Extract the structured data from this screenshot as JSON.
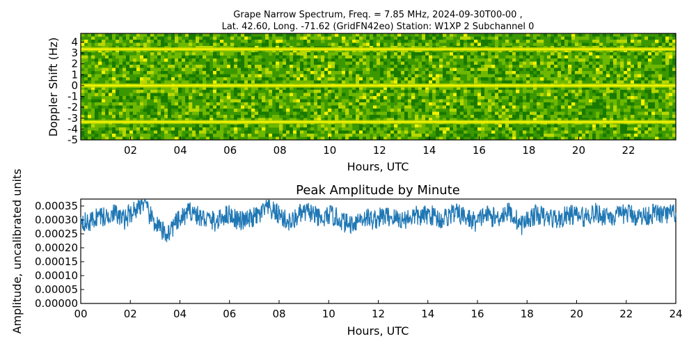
{
  "chart_data": [
    {
      "type": "heatmap",
      "title": "Grape Narrow Spectrum, Freq. = 7.85 MHz, 2024-09-30T00-00 ,",
      "subtitle": "Lat.  42.60, Long. -71.62 (GridFN42eo) Station: W1XP 2 Subchannel 0",
      "xlabel": "Hours, UTC",
      "ylabel": "Doppler Shift (Hz)",
      "x_tick_labels": [
        "02",
        "04",
        "06",
        "08",
        "10",
        "12",
        "14",
        "16",
        "18",
        "20",
        "22"
      ],
      "x_tick_values": [
        2,
        4,
        6,
        8,
        10,
        12,
        14,
        16,
        18,
        20,
        22
      ],
      "xlim": [
        0,
        23.9
      ],
      "y_tick_labels": [
        "4",
        "3",
        "2",
        "1",
        "0",
        "-1",
        "-2",
        "-3",
        "-4",
        "-5"
      ],
      "y_tick_values": [
        4,
        3,
        2,
        1,
        0,
        -1,
        -2,
        -3,
        -4,
        -5
      ],
      "ylim": [
        -5,
        4.8
      ],
      "bright_lines_hz": [
        3.35,
        0.0,
        -3.35
      ],
      "colormap": [
        "#1a7a00",
        "#3c9800",
        "#6fb800",
        "#b8d800",
        "#f2f200"
      ],
      "grid": false
    },
    {
      "type": "line",
      "title": "Peak Amplitude by Minute",
      "xlabel": "Hours, UTC",
      "ylabel": "Amplitude, uncalibrated units",
      "x_tick_labels": [
        "00",
        "02",
        "04",
        "06",
        "08",
        "10",
        "12",
        "14",
        "16",
        "18",
        "20",
        "22",
        "24"
      ],
      "x_tick_values": [
        0,
        2,
        4,
        6,
        8,
        10,
        12,
        14,
        16,
        18,
        20,
        22,
        24
      ],
      "xlim": [
        0,
        24
      ],
      "y_tick_labels": [
        "0.00000",
        "0.00005",
        "0.00010",
        "0.00015",
        "0.00020",
        "0.00025",
        "0.00030",
        "0.00035"
      ],
      "y_tick_values": [
        0,
        5e-05,
        0.0001,
        0.00015,
        0.0002,
        0.00025,
        0.0003,
        0.00035
      ],
      "ylim": [
        0,
        0.000375
      ],
      "line_color": "#1f77b4",
      "grid": false,
      "series": [
        {
          "x": [
            0,
            0.25,
            0.5,
            0.75,
            1,
            1.25,
            1.5,
            1.75,
            2,
            2.25,
            2.5,
            2.75,
            3,
            3.25,
            3.5,
            3.75,
            4,
            4.25,
            4.5,
            4.75,
            5,
            5.25,
            5.5,
            5.75,
            6,
            6.25,
            6.5,
            6.75,
            7,
            7.25,
            7.5,
            7.75,
            8,
            8.25,
            8.5,
            8.75,
            9,
            9.25,
            9.5,
            9.75,
            10,
            10.25,
            10.5,
            10.75,
            11,
            11.25,
            11.5,
            11.75,
            12,
            12.25,
            12.5,
            12.75,
            13,
            13.25,
            13.5,
            13.75,
            14,
            14.25,
            14.5,
            14.75,
            15,
            15.25,
            15.5,
            15.75,
            16,
            16.25,
            16.5,
            16.75,
            17,
            17.25,
            17.5,
            17.75,
            18,
            18.25,
            18.5,
            18.75,
            19,
            19.25,
            19.5,
            19.75,
            20,
            20.25,
            20.5,
            20.75,
            21,
            21.25,
            21.5,
            21.75,
            22,
            22.25,
            22.5,
            22.75,
            23,
            23.25,
            23.5,
            23.75,
            24
          ],
          "values": [
            0.00031,
            0.000285,
            0.0003,
            0.00032,
            0.000305,
            0.00033,
            0.000315,
            0.0003,
            0.000325,
            0.00034,
            0.000365,
            0.00032,
            0.00029,
            0.00026,
            0.00025,
            0.00028,
            0.0003,
            0.00032,
            0.000335,
            0.00031,
            0.000305,
            0.0003,
            0.00029,
            0.000315,
            0.00032,
            0.000305,
            0.000295,
            0.0003,
            0.00031,
            0.00032,
            0.000345,
            0.00033,
            0.00032,
            0.0003,
            0.00029,
            0.000315,
            0.000325,
            0.00033,
            0.00031,
            0.000295,
            0.00032,
            0.00031,
            0.0003,
            0.000285,
            0.00029,
            0.000305,
            0.00031,
            0.0003,
            0.000305,
            0.000315,
            0.00031,
            0.000305,
            0.0003,
            0.00031,
            0.000315,
            0.00031,
            0.00032,
            0.000315,
            0.0003,
            0.00031,
            0.000325,
            0.00032,
            0.00031,
            0.0003,
            0.00029,
            0.00032,
            0.000315,
            0.000305,
            0.00032,
            0.00033,
            0.00031,
            0.00028,
            0.0003,
            0.000315,
            0.00032,
            0.000305,
            0.00031,
            0.0003,
            0.00031,
            0.00032,
            0.000315,
            0.00031,
            0.00032,
            0.000325,
            0.000315,
            0.00032,
            0.00031,
            0.000315,
            0.000325,
            0.00032,
            0.00031,
            0.000315,
            0.00032,
            0.000325,
            0.000315,
            0.00032,
            0.000325
          ]
        }
      ]
    }
  ]
}
